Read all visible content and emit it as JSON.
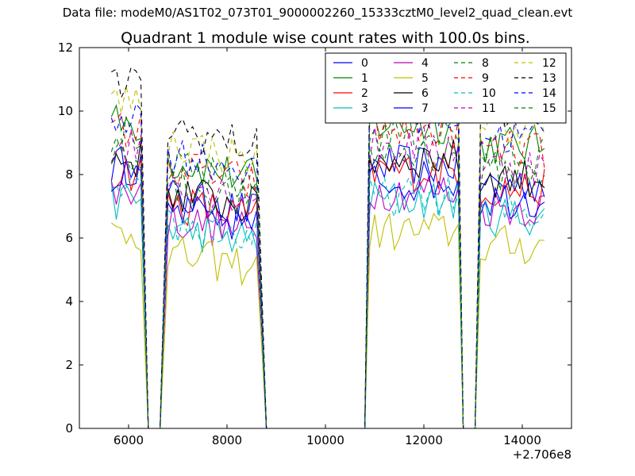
{
  "suptitle": "Data file: modeM0/AS1T02_073T01_9000002260_15333cztM0_level2_quad_clean.evt",
  "chart_data": {
    "type": "line",
    "title": "Quadrant 1 module wise count rates with 100.0s bins.",
    "xlabel": "",
    "ylabel": "",
    "x_offset_label": "+2.706e8",
    "xlim": [
      5000,
      15000
    ],
    "ylim": [
      0,
      12
    ],
    "xticks": [
      6000,
      8000,
      10000,
      12000,
      14000
    ],
    "yticks": [
      0,
      2,
      4,
      6,
      8,
      10,
      12
    ],
    "grid": false,
    "legend_position": "top-right",
    "legend_columns": 4,
    "gaps": [
      [
        6400,
        6640
      ],
      [
        8800,
        10800
      ],
      [
        12800,
        13040
      ]
    ],
    "segments": [
      {
        "start": 5650,
        "end": 6300,
        "factor": 1.0
      },
      {
        "start": 6800,
        "end": 8650,
        "factor": 0.88
      },
      {
        "start": 10900,
        "end": 12700,
        "factor": 1.0
      },
      {
        "start": 13150,
        "end": 14500,
        "factor": 0.93
      }
    ],
    "series": [
      {
        "name": "0",
        "color": "#0000ff",
        "dash": "solid",
        "level": 8.3
      },
      {
        "name": "1",
        "color": "#008000",
        "dash": "solid",
        "level": 9.6
      },
      {
        "name": "2",
        "color": "#ff0000",
        "dash": "solid",
        "level": 8.1
      },
      {
        "name": "3",
        "color": "#00bfbf",
        "dash": "solid",
        "level": 7.2
      },
      {
        "name": "4",
        "color": "#bf00bf",
        "dash": "solid",
        "level": 7.5
      },
      {
        "name": "5",
        "color": "#bfbf00",
        "dash": "solid",
        "level": 6.2
      },
      {
        "name": "6",
        "color": "#000000",
        "dash": "solid",
        "level": 8.5
      },
      {
        "name": "7",
        "color": "#0000ff",
        "dash": "solid",
        "level": 7.8
      },
      {
        "name": "8",
        "color": "#008000",
        "dash": "dashed",
        "level": 9.3
      },
      {
        "name": "9",
        "color": "#ff0000",
        "dash": "dashed",
        "level": 9.4
      },
      {
        "name": "10",
        "color": "#00bfbf",
        "dash": "dashed",
        "level": 7.3
      },
      {
        "name": "11",
        "color": "#bf00bf",
        "dash": "dashed",
        "level": 8.9
      },
      {
        "name": "12",
        "color": "#bfbf00",
        "dash": "dashed",
        "level": 10.3
      },
      {
        "name": "13",
        "color": "#000000",
        "dash": "dashed",
        "level": 10.8
      },
      {
        "name": "14",
        "color": "#0000ff",
        "dash": "dashed",
        "level": 9.9
      },
      {
        "name": "15",
        "color": "#008000",
        "dash": "dashed",
        "level": 8.7
      }
    ]
  }
}
